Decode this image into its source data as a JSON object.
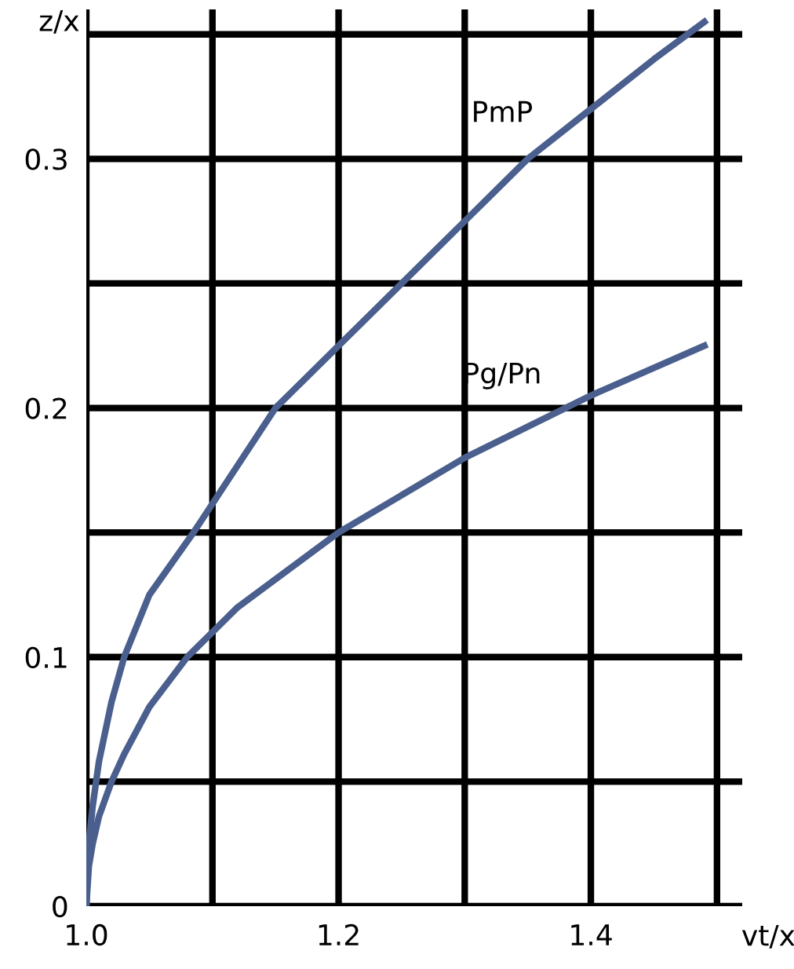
{
  "chart_data": {
    "type": "line",
    "xlabel": "vt/x",
    "ylabel": "z/x",
    "xlim": [
      1.0,
      1.52
    ],
    "ylim": [
      0,
      0.36
    ],
    "xticks": [
      {
        "value": 1.0,
        "label": "1.0"
      },
      {
        "value": 1.1,
        "label": null
      },
      1.2,
      {
        "value": 1.3,
        "label": null
      },
      1.4,
      {
        "value": 1.5,
        "label": null
      }
    ],
    "yticks": [
      0,
      {
        "value": 0.05,
        "label": null
      },
      0.1,
      {
        "value": 0.15,
        "label": null
      },
      0.2,
      {
        "value": 0.25,
        "label": null
      },
      0.3,
      {
        "value": 0.35,
        "label": null
      }
    ],
    "grid": true,
    "marker": "none",
    "line_style": "solid",
    "series": [
      {
        "name": "PmP",
        "color": "#4a5f8e",
        "x": [
          1.0,
          1.002,
          1.005,
          1.01,
          1.02,
          1.03,
          1.05,
          1.085,
          1.15,
          1.2,
          1.25,
          1.3,
          1.35,
          1.4,
          1.45,
          1.49
        ],
        "values": [
          0,
          0.025,
          0.04,
          0.058,
          0.082,
          0.1,
          0.125,
          0.15,
          0.2,
          0.225,
          0.25,
          0.275,
          0.3,
          0.32,
          0.34,
          0.355
        ]
      },
      {
        "name": "Pg/Pn",
        "color": "#4a5f8e",
        "x": [
          1.0,
          1.002,
          1.005,
          1.01,
          1.02,
          1.03,
          1.05,
          1.08,
          1.12,
          1.2,
          1.3,
          1.4,
          1.49
        ],
        "values": [
          0,
          0.016,
          0.025,
          0.036,
          0.05,
          0.061,
          0.08,
          0.1,
          0.12,
          0.15,
          0.18,
          0.205,
          0.225
        ]
      }
    ]
  }
}
